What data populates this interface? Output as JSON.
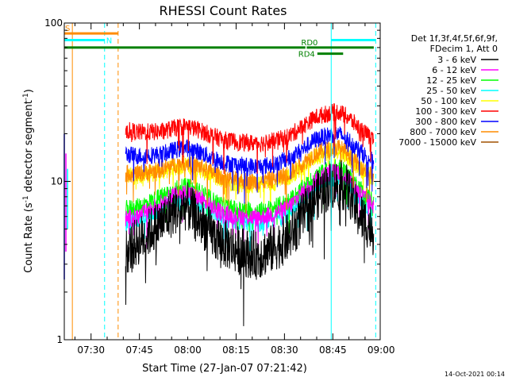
{
  "chart_data": {
    "type": "line",
    "title": "RHESSI Count Rates",
    "xlabel": "Start Time (27-Jan-07 07:21:42)",
    "ylabel_parts": [
      "Count Rate (s",
      "-1",
      " detector segment",
      "-1",
      ")"
    ],
    "yscale": "log",
    "ylim": [
      1,
      100
    ],
    "xlim_minutes": [
      0,
      98
    ],
    "y_ticks": [
      {
        "value": 1,
        "label": "1"
      },
      {
        "value": 10,
        "label": "10"
      },
      {
        "value": 100,
        "label": "100"
      }
    ],
    "x_ticks": [
      {
        "minute": 8.3,
        "label": "07:30"
      },
      {
        "minute": 23.3,
        "label": "07:45"
      },
      {
        "minute": 38.3,
        "label": "08:00"
      },
      {
        "minute": 53.3,
        "label": "08:15"
      },
      {
        "minute": 68.3,
        "label": "08:30"
      },
      {
        "minute": 83.3,
        "label": "08:45"
      },
      {
        "minute": 98.3,
        "label": "09:00"
      }
    ],
    "legend": {
      "position": "right",
      "header": [
        "Det 1f,3f,4f,5f,6f,9f,",
        "FDecim 1, Att 0"
      ]
    },
    "series": [
      {
        "name": "3 - 6 keV",
        "color": "#000000",
        "anchors": [
          [
            19,
            3.6
          ],
          [
            23,
            4.2
          ],
          [
            30,
            5.5
          ],
          [
            35,
            6.7
          ],
          [
            38,
            7.0
          ],
          [
            42,
            5.6
          ],
          [
            46,
            4.6
          ],
          [
            50,
            4.0
          ],
          [
            55,
            3.6
          ],
          [
            60,
            3.4
          ],
          [
            65,
            3.8
          ],
          [
            70,
            4.5
          ],
          [
            74,
            6.0
          ],
          [
            78,
            8.0
          ],
          [
            82,
            9.3
          ],
          [
            85,
            9.8
          ],
          [
            88,
            8.9
          ],
          [
            91,
            6.3
          ],
          [
            94,
            5.4
          ],
          [
            96,
            4.8
          ]
        ]
      },
      {
        "name": "6 - 12 keV",
        "color": "#ff00ff",
        "anchors": [
          [
            19,
            5.8
          ],
          [
            23,
            6.0
          ],
          [
            30,
            7.3
          ],
          [
            35,
            8.3
          ],
          [
            38,
            8.6
          ],
          [
            42,
            7.8
          ],
          [
            46,
            6.8
          ],
          [
            50,
            6.2
          ],
          [
            55,
            6.0
          ],
          [
            60,
            5.9
          ],
          [
            65,
            6.2
          ],
          [
            70,
            7.0
          ],
          [
            74,
            8.5
          ],
          [
            78,
            10.2
          ],
          [
            82,
            11.3
          ],
          [
            85,
            11.6
          ],
          [
            88,
            10.5
          ],
          [
            91,
            8.7
          ],
          [
            94,
            7.6
          ],
          [
            96,
            7.0
          ]
        ]
      },
      {
        "name": "12 - 25 keV",
        "color": "#00ff00",
        "anchors": [
          [
            19,
            6.7
          ],
          [
            23,
            6.9
          ],
          [
            30,
            8.0
          ],
          [
            35,
            9.0
          ],
          [
            38,
            9.3
          ],
          [
            42,
            8.6
          ],
          [
            46,
            7.6
          ],
          [
            50,
            6.9
          ],
          [
            55,
            6.6
          ],
          [
            60,
            6.5
          ],
          [
            65,
            6.8
          ],
          [
            70,
            7.6
          ],
          [
            74,
            9.0
          ],
          [
            78,
            10.8
          ],
          [
            82,
            12.0
          ],
          [
            85,
            12.3
          ],
          [
            88,
            11.1
          ],
          [
            91,
            9.4
          ],
          [
            94,
            8.2
          ],
          [
            96,
            7.6
          ]
        ]
      },
      {
        "name": "25 - 50 keV",
        "color": "#00ffff",
        "anchors": [
          [
            19,
            5.5
          ],
          [
            23,
            5.7
          ],
          [
            30,
            6.8
          ],
          [
            35,
            7.7
          ],
          [
            38,
            8.0
          ],
          [
            42,
            7.2
          ],
          [
            46,
            6.3
          ],
          [
            50,
            5.7
          ],
          [
            55,
            5.5
          ],
          [
            60,
            5.4
          ],
          [
            65,
            5.7
          ],
          [
            70,
            6.4
          ],
          [
            74,
            7.7
          ],
          [
            78,
            9.3
          ],
          [
            82,
            10.3
          ],
          [
            85,
            10.6
          ],
          [
            88,
            9.6
          ],
          [
            91,
            8.0
          ],
          [
            94,
            6.9
          ],
          [
            96,
            6.4
          ]
        ]
      },
      {
        "name": "50 - 100 keV",
        "color": "#ffff00",
        "anchors": [
          [
            19,
            10.8
          ],
          [
            23,
            10.9
          ],
          [
            30,
            11.4
          ],
          [
            35,
            12.4
          ],
          [
            38,
            12.7
          ],
          [
            42,
            11.9
          ],
          [
            46,
            10.8
          ],
          [
            50,
            10.0
          ],
          [
            55,
            9.6
          ],
          [
            60,
            9.5
          ],
          [
            65,
            9.8
          ],
          [
            70,
            10.8
          ],
          [
            74,
            12.4
          ],
          [
            78,
            14.3
          ],
          [
            82,
            15.4
          ],
          [
            85,
            15.7
          ],
          [
            88,
            14.3
          ],
          [
            91,
            12.4
          ],
          [
            94,
            11.2
          ],
          [
            96,
            10.5
          ]
        ]
      },
      {
        "name": "100 - 300 keV",
        "color": "#ff0000",
        "anchors": [
          [
            19,
            21.0
          ],
          [
            23,
            20.4
          ],
          [
            30,
            20.6
          ],
          [
            35,
            21.9
          ],
          [
            38,
            22.4
          ],
          [
            42,
            21.0
          ],
          [
            46,
            19.4
          ],
          [
            50,
            18.2
          ],
          [
            55,
            17.6
          ],
          [
            60,
            17.4
          ],
          [
            65,
            17.9
          ],
          [
            70,
            19.4
          ],
          [
            74,
            22.3
          ],
          [
            78,
            25.4
          ],
          [
            82,
            27.0
          ],
          [
            85,
            27.6
          ],
          [
            88,
            25.4
          ],
          [
            91,
            22.2
          ],
          [
            94,
            19.6
          ],
          [
            96,
            18.4
          ]
        ]
      },
      {
        "name": "300 - 800 keV",
        "color": "#0000ff",
        "anchors": [
          [
            19,
            14.8
          ],
          [
            23,
            14.5
          ],
          [
            30,
            14.8
          ],
          [
            35,
            15.9
          ],
          [
            38,
            16.3
          ],
          [
            42,
            15.3
          ],
          [
            46,
            14.0
          ],
          [
            50,
            13.1
          ],
          [
            55,
            12.6
          ],
          [
            60,
            12.4
          ],
          [
            65,
            12.8
          ],
          [
            70,
            14.0
          ],
          [
            74,
            16.0
          ],
          [
            78,
            18.4
          ],
          [
            82,
            19.6
          ],
          [
            85,
            20.0
          ],
          [
            88,
            18.4
          ],
          [
            91,
            16.0
          ],
          [
            94,
            14.2
          ],
          [
            96,
            13.3
          ]
        ]
      },
      {
        "name": "800 - 7000 keV",
        "color": "#ff8c00",
        "anchors": [
          [
            19,
            11.2
          ],
          [
            23,
            11.2
          ],
          [
            30,
            11.9
          ],
          [
            35,
            12.9
          ],
          [
            38,
            13.2
          ],
          [
            42,
            12.4
          ],
          [
            46,
            11.3
          ],
          [
            50,
            10.5
          ],
          [
            55,
            10.1
          ],
          [
            60,
            9.9
          ],
          [
            65,
            10.3
          ],
          [
            70,
            11.3
          ],
          [
            74,
            13.0
          ],
          [
            78,
            15.0
          ],
          [
            82,
            16.0
          ],
          [
            85,
            16.4
          ],
          [
            88,
            15.0
          ],
          [
            91,
            13.0
          ],
          [
            94,
            11.6
          ],
          [
            96,
            10.9
          ]
        ]
      },
      {
        "name": "7000 - 15000 keV",
        "color": "#a05000",
        "anchors": []
      }
    ],
    "spikes": [
      {
        "minute": 0.0,
        "low": 2.4,
        "high": 20,
        "color": "#0000ff"
      },
      {
        "minute": 0.5,
        "low": 3.6,
        "high": 15,
        "color": "#ff00ff"
      },
      {
        "minute": 1.0,
        "low": 5.0,
        "high": 12,
        "color": "#00ffff"
      }
    ],
    "event_lines": [
      {
        "minute": 0.0,
        "color": "#00ffff",
        "dashed": false
      },
      {
        "minute": 2.5,
        "color": "#ff8c00",
        "dashed": false
      },
      {
        "minute": 12.5,
        "color": "#00ffff",
        "dashed": true
      },
      {
        "minute": 16.7,
        "color": "#ff8c00",
        "dashed": true
      },
      {
        "minute": 82.8,
        "color": "#00ffff",
        "dashed": false
      },
      {
        "minute": 96.6,
        "color": "#00ffff",
        "dashed": true
      }
    ],
    "flag_bars": [
      {
        "label": "S",
        "start": 0,
        "end": 16.7,
        "y": 86,
        "color": "#ff8c00",
        "label_at": "start"
      },
      {
        "label": "N",
        "start": 0,
        "end": 12.5,
        "y": 78,
        "color": "#00ffff",
        "label_at": "end"
      },
      {
        "label": "",
        "start": 0,
        "end": 74.8,
        "y": 70,
        "color": "#008000",
        "label_at": "none"
      },
      {
        "label": "RD0",
        "start": 75.2,
        "end": 96.0,
        "y": 70,
        "color": "#008000",
        "label_at": "above-mid"
      },
      {
        "label": "RD4",
        "start": 78.5,
        "end": 86.5,
        "y": 64,
        "color": "#008000",
        "label_at": "start-left"
      },
      {
        "label": "",
        "start": 82.8,
        "end": 96.6,
        "y": 78,
        "color": "#00ffff",
        "label_at": "none"
      }
    ]
  },
  "footer": {
    "timestamp": "14-Oct-2021 00:14"
  }
}
